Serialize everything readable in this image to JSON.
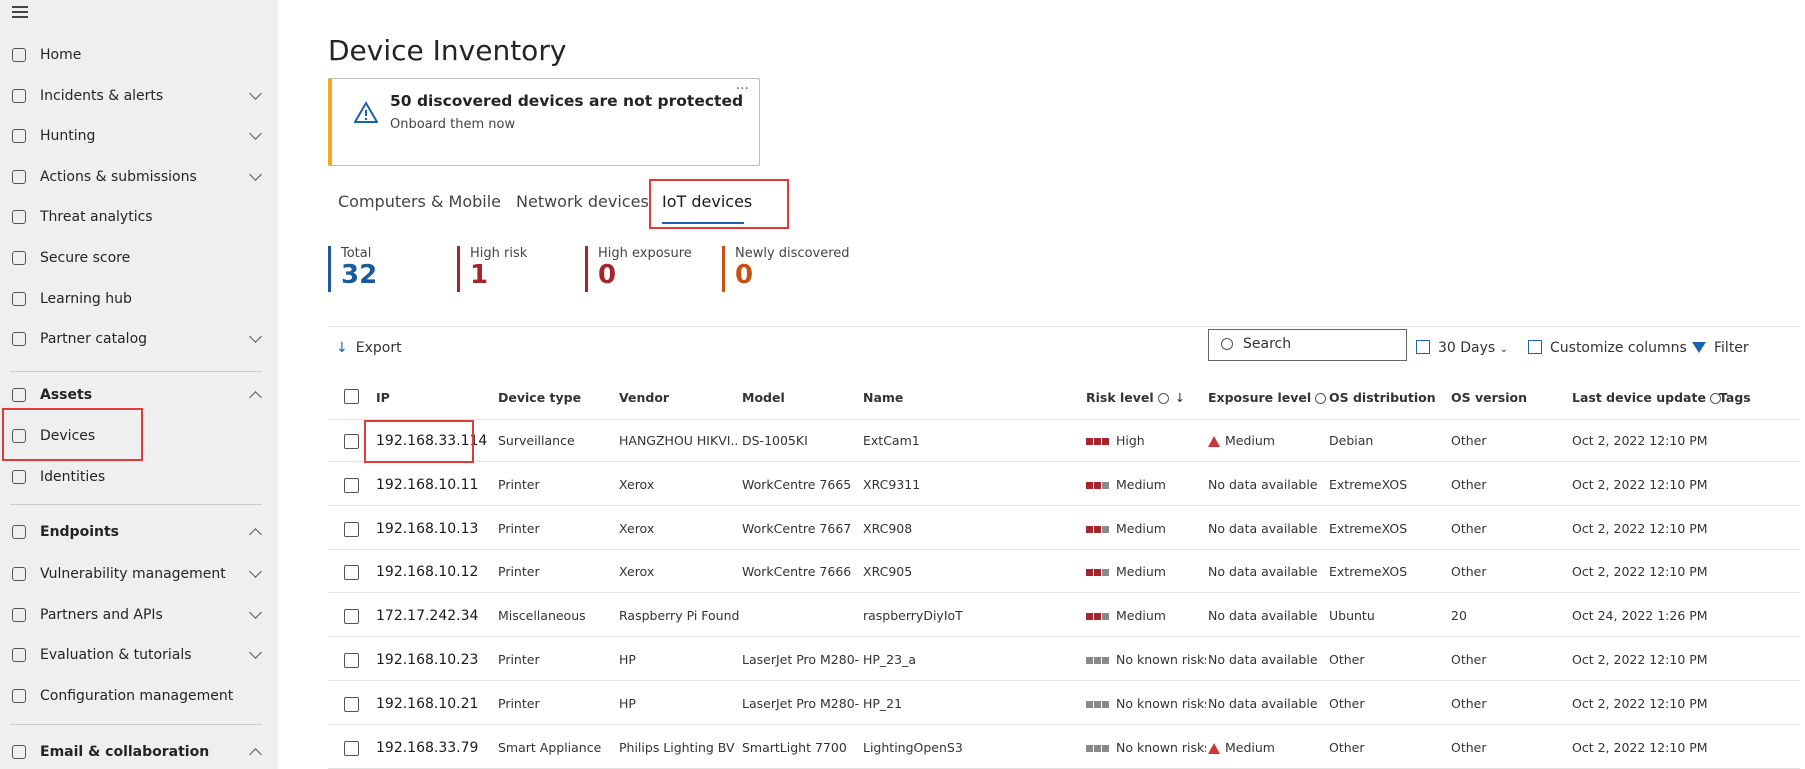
{
  "nav": {
    "items": [
      "Home",
      "Incidents & alerts",
      "Hunting",
      "Actions & submissions",
      "Threat analytics",
      "Secure score",
      "Learning hub",
      "Partner catalog"
    ],
    "assets": {
      "title": "Assets",
      "items": [
        "Devices",
        "Identities"
      ]
    },
    "endpoints": {
      "title": "Endpoints",
      "items": [
        "Vulnerability management",
        "Partners and APIs",
        "Evaluation & tutorials",
        "Configuration management"
      ]
    },
    "email": {
      "title": "Email & collaboration"
    }
  },
  "header": {
    "title": "Device Inventory"
  },
  "banner": {
    "title": "50 discovered devices are not protected",
    "subtitle": "Onboard them now"
  },
  "tabs": [
    "Computers & Mobile",
    "Network devices",
    "IoT devices"
  ],
  "stats": [
    {
      "label": "Total",
      "value": 32
    },
    {
      "label": "High risk",
      "value": 1
    },
    {
      "label": "High exposure",
      "value": 0
    },
    {
      "label": "Newly discovered",
      "value": 0
    }
  ],
  "toolbar": {
    "export": "Export",
    "search": "Search",
    "range": "30 Days",
    "customize": "Customize columns",
    "filter": "Filter"
  },
  "table": {
    "columns": [
      "IP",
      "Device type",
      "Vendor",
      "Model",
      "Name",
      "Risk level",
      "Exposure level",
      "OS distribution",
      "OS version",
      "Last device update",
      "Tags"
    ],
    "rows": [
      [
        "192.168.33.114",
        "Surveillance",
        "HANGZHOU HIKVI...",
        "DS-1005KI",
        "ExtCam1",
        "High",
        "Medium",
        "Debian",
        "Other",
        "Oct 2, 2022 12:10 PM"
      ],
      [
        "192.168.10.11",
        "Printer",
        "Xerox",
        "WorkCentre 7665",
        "XRC9311",
        "Medium",
        "No data available",
        "ExtremeXOS",
        "Other",
        "Oct 2, 2022 12:10 PM"
      ],
      [
        "192.168.10.13",
        "Printer",
        "Xerox",
        "WorkCentre 7667",
        "XRC908",
        "Medium",
        "No data available",
        "ExtremeXOS",
        "Other",
        "Oct 2, 2022 12:10 PM"
      ],
      [
        "192.168.10.12",
        "Printer",
        "Xerox",
        "WorkCentre 7666",
        "XRC905",
        "Medium",
        "No data available",
        "ExtremeXOS",
        "Other",
        "Oct 2, 2022 12:10 PM"
      ],
      [
        "172.17.242.34",
        "Miscellaneous",
        "Raspberry Pi Found...",
        null,
        "raspberryDiyIoT",
        "Medium",
        "No data available",
        "Ubuntu",
        "20",
        "Oct 24, 2022 1:26 PM"
      ],
      [
        "192.168.10.23",
        "Printer",
        "HP",
        "LaserJet Pro M280-...",
        "HP_23_a",
        "No known risks",
        "No data available",
        "Other",
        "Other",
        "Oct 2, 2022 12:10 PM"
      ],
      [
        "192.168.10.21",
        "Printer",
        "HP",
        "LaserJet Pro M280-...",
        "HP_21",
        "No known risks",
        "No data available",
        "Other",
        "Other",
        "Oct 2, 2022 12:10 PM"
      ],
      [
        "192.168.33.79",
        "Smart Appliance",
        "Philips Lighting BV",
        "SmartLight 7700",
        "LightingOpenS3",
        "No known risks",
        "Medium",
        "Other",
        "Other",
        "Oct 2, 2022 12:10 PM"
      ]
    ]
  }
}
